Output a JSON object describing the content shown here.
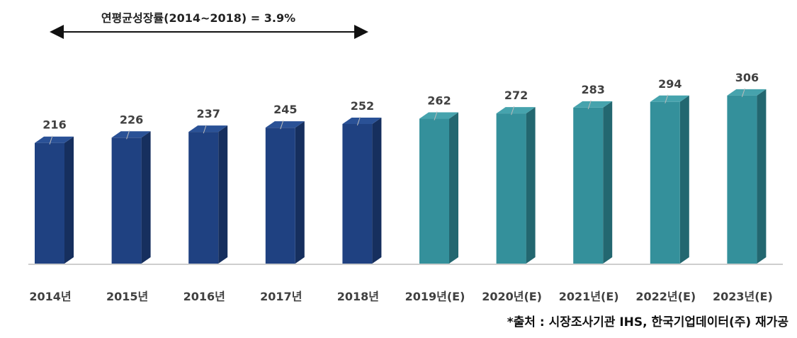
{
  "annotation": {
    "cagr_text": "연평균성장률(2014~2018) = 3.9%"
  },
  "source_text": "*출처 : 시장조사기관 IHS, 한국기업데이터(주) 재가공",
  "chart_data": {
    "type": "bar",
    "categories": [
      "2014년",
      "2015년",
      "2016년",
      "2017년",
      "2018년",
      "2019년(E)",
      "2020년(E)",
      "2021년(E)",
      "2022년(E)",
      "2023년(E)"
    ],
    "values": [
      216,
      226,
      237,
      245,
      252,
      262,
      272,
      283,
      294,
      306
    ],
    "estimated": [
      false,
      false,
      false,
      false,
      false,
      true,
      true,
      true,
      true,
      true
    ],
    "title": "",
    "xlabel": "",
    "ylabel": "",
    "grid": false,
    "colors": {
      "actual_front": "#1f4181",
      "actual_side": "#162f5e",
      "actual_top": "#2a5196",
      "estimate_front": "#34909b",
      "estimate_side": "#236770",
      "estimate_top": "#46a3ad",
      "axis": "#bdbdbd",
      "label": "#404040"
    }
  }
}
